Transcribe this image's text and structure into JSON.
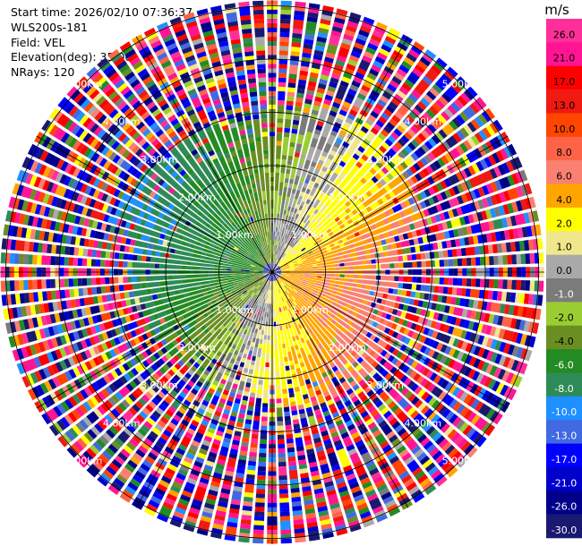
{
  "header": {
    "start_time": "Start time: 2026/02/10 07:36:37",
    "instrument": "WLS200s-181",
    "field": "Field: VEL",
    "elevation": "Elevation(deg): 35.00",
    "nrays": "NRays: 120"
  },
  "chart_data": {
    "type": "heatmap",
    "projection": "polar-ppi",
    "field": "VEL",
    "n_rays": 120,
    "range_rings_km": [
      1,
      2,
      3,
      4,
      5
    ],
    "ring_labels": [
      "1.00km",
      "2.00km",
      "3.00km",
      "4.00km",
      "5.00km"
    ],
    "colorbar": {
      "unit": "m/s",
      "tick_labels": [
        "26.0",
        "21.0",
        "17.0",
        "13.0",
        "10.0",
        "8.0",
        "6.0",
        "4.0",
        "2.0",
        "1.0",
        "0.0",
        "-1.0",
        "-2.0",
        "-4.0",
        "-6.0",
        "-8.0",
        "-10.0",
        "-13.0",
        "-17.0",
        "-21.0",
        "-26.0",
        "-30.0"
      ],
      "colors": [
        "#ff2f9a",
        "#ff1493",
        "#ff0000",
        "#f01a10",
        "#ff4500",
        "#ff6347",
        "#fa8072",
        "#ffa500",
        "#ffff00",
        "#f0e68c",
        "#a9a9a9",
        "#7b7b7b",
        "#9acd32",
        "#6b8e23",
        "#228b22",
        "#2e8b57",
        "#1e90ff",
        "#4169e1",
        "#0000ff",
        "#0000cd",
        "#00008b",
        "#191970"
      ]
    },
    "pattern": {
      "noise_beyond_km": 2.5,
      "positive_sector": "east / south-east (yellow-orange, approaching +4 to +8 m/s)",
      "negative_sector": "west (green / blue, receding -4 to -10 m/s)"
    }
  }
}
